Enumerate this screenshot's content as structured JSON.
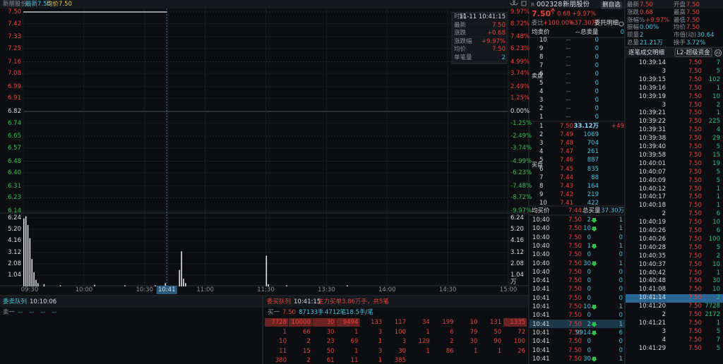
{
  "chart_header": {
    "name": "新朋股份",
    "latest": "最新7.50",
    "avg": "均价7.50"
  },
  "price_chart": {
    "type": "line",
    "color": "#e6e6e6",
    "ylim": [
      6.14,
      7.5
    ],
    "yticks": [
      {
        "value": 7.5,
        "label": "7.50"
      },
      7.42,
      7.33,
      7.25,
      7.16,
      7.08,
      6.99,
      6.91,
      6.82,
      6.74,
      6.65,
      6.57,
      6.48,
      {
        "value": 6.4,
        "label": "6.40"
      },
      6.31,
      6.23,
      6.14
    ],
    "pct_labels": [
      "9.97%",
      "8.72%",
      "7.48%",
      "6.23%",
      "4.99%",
      "3.74%",
      "2.49%",
      "1.25%",
      "0.00%",
      "-1.25%",
      "-2.49%",
      "-3.74%",
      "-4.99%",
      "-6.23%",
      "-7.48%",
      "-8.72%",
      "-9.97%"
    ],
    "x": [
      "09:30",
      "10:41"
    ],
    "values": [
      7.5,
      7.5
    ]
  },
  "info_box": {
    "rows": [
      [
        "时间",
        "11-11 10:41:15"
      ],
      [
        "最新",
        "7.50"
      ],
      [
        "涨跌",
        "+0.68"
      ],
      [
        "涨跌幅",
        "+9.97%"
      ],
      [
        "均价",
        "7.50"
      ],
      [
        "单笔量",
        "2"
      ]
    ]
  },
  "volume_chart": {
    "type": "bar",
    "color": "#e0e0e0",
    "ylim": [
      0,
      6.5
    ],
    "yticks": [
      6.24,
      {
        "value": 5.2,
        "label": "5.20"
      },
      4.16,
      3.12,
      2.08,
      1.04
    ],
    "unit": "万",
    "x": [
      "09:30",
      "09:31",
      "09:32",
      "09:33",
      "09:34",
      "09:35",
      "09:36",
      "09:37",
      "09:40",
      "09:48",
      "10:05",
      "10:20",
      "10:35",
      "10:40",
      "10:47",
      "10:48",
      "10:49",
      "10:50",
      "11:30",
      "13:01",
      "13:10",
      "13:40"
    ],
    "values": [
      6.2,
      6.4,
      5.6,
      4.4,
      2.5,
      1.3,
      0.6,
      0.3,
      0.2,
      0.1,
      0.15,
      0.1,
      0.1,
      0.3,
      1.5,
      3.2,
      0.7,
      0.3,
      2.8,
      0.2,
      0.1,
      0.1
    ]
  },
  "time_axis": {
    "ticks": [
      "09:30",
      "10:00",
      "10:30",
      "11:00",
      "11:30",
      "13:30",
      "14:00",
      "14:30",
      "15:00"
    ],
    "current": "10:41"
  },
  "sell_queue": {
    "title": "委卖队列",
    "time": "10:10:06",
    "row": [
      "卖一",
      "--",
      "--",
      "--",
      "--"
    ]
  },
  "buy_queue": {
    "title": "委买队列",
    "time": "10:41:15",
    "summary": "主力买单3.86万手，共5笔",
    "row": [
      "买一",
      "7.50",
      "87133手",
      "4712笔",
      "18.5手/笔"
    ],
    "grid": [
      [
        "7728",
        "10000",
        "30",
        "9494",
        "133",
        "117",
        "34",
        "199",
        "10",
        "131",
        "1335"
      ],
      [
        "1",
        "66",
        "30",
        "1",
        "3",
        "100",
        "1",
        "6",
        "79",
        "50",
        "72"
      ],
      [
        "10",
        "2",
        "23",
        "69",
        "1",
        "3",
        "129",
        "2",
        "30",
        "90",
        "100"
      ],
      [
        "11",
        "15",
        "50",
        "1",
        "3",
        "30",
        "1",
        "86",
        "1",
        "1",
        "26"
      ],
      [
        "380",
        "2",
        "61",
        "11",
        "1",
        "385"
      ]
    ]
  },
  "quote": {
    "flag": "R",
    "code": "002328",
    "name": "新朋股份",
    "button": "删自选",
    "price": "7.50",
    "change": "0.68",
    "pct": "+9.97%",
    "ratio_label": "委比",
    "ratio": "+100.00%",
    "diff": "+37.30万",
    "detail": "委托明细",
    "avg_sell_label": "均卖价",
    "avg_sell": "--",
    "total_sell_label": "总卖量",
    "total_sell": "0",
    "sell_side": "卖盘",
    "buy_side": "买盘",
    "sells": [
      [
        "10",
        "--",
        "0"
      ],
      [
        "9",
        "--",
        "0"
      ],
      [
        "8",
        "--",
        "0"
      ],
      [
        "7",
        "--",
        "0"
      ],
      [
        "6",
        "--",
        "0"
      ],
      [
        "5",
        "--",
        "0"
      ],
      [
        "4",
        "--",
        "0"
      ],
      [
        "3",
        "--",
        "0"
      ],
      [
        "2",
        "--",
        "0"
      ],
      [
        "1",
        "--",
        "0"
      ]
    ],
    "buys": [
      [
        "1",
        "7.50",
        "33.12万",
        "+49"
      ],
      [
        "2",
        "7.49",
        "1069"
      ],
      [
        "3",
        "7.48",
        "704"
      ],
      [
        "4",
        "7.47",
        "261"
      ],
      [
        "5",
        "7.46",
        "887"
      ],
      [
        "6",
        "7.45",
        "835"
      ],
      [
        "7",
        "7.44",
        "88"
      ],
      [
        "8",
        "7.43",
        "164"
      ],
      [
        "9",
        "7.42",
        "219"
      ],
      [
        "10",
        "7.41",
        "422"
      ]
    ],
    "avg_buy_label": "均买价",
    "avg_buy": "7.44",
    "total_buy_label": "总买量",
    "total_buy": "37.30万",
    "trades": [
      [
        "10:40",
        "7.50",
        "2",
        "1"
      ],
      [
        "10:40",
        "7.50",
        "10",
        "1"
      ],
      [
        "10:40",
        "7.50",
        "0",
        "0"
      ],
      [
        "10:40",
        "7.50",
        "1",
        "1"
      ],
      [
        "10:40",
        "7.50",
        "0",
        "0"
      ],
      [
        "10:40",
        "7.50",
        "30",
        "1"
      ],
      [
        "10:40",
        "7.50",
        "0",
        "0"
      ],
      [
        "10:41",
        "7.50",
        "0",
        "0"
      ],
      [
        "10:41",
        "7.50",
        "0",
        "0"
      ],
      [
        "10:41",
        "7.50",
        "0",
        "0"
      ],
      [
        "10:41",
        "7.50",
        "10",
        "1"
      ],
      [
        "10:41",
        "7.50",
        "0",
        "0"
      ],
      [
        "10:41",
        "7.50",
        "2",
        "1"
      ],
      [
        "10:41",
        "7.50",
        "9914",
        "6"
      ],
      [
        "10:41",
        "7.50",
        "0",
        "0"
      ],
      [
        "10:41",
        "7.50",
        "0",
        "0"
      ],
      [
        "10:41",
        "7.50",
        "30",
        "1"
      ]
    ]
  },
  "stats": [
    [
      "最新",
      "7.50"
    ],
    [
      "开盘",
      "7.50"
    ],
    [
      "涨跌",
      "0.68"
    ],
    [
      "最高",
      "7.50"
    ],
    [
      "涨幅%",
      "+9.97%"
    ],
    [
      "最低",
      "7.50"
    ],
    [
      "振幅",
      "0.00%"
    ],
    [
      "均价",
      "7.50"
    ],
    [
      "现量",
      "2"
    ],
    [
      "市值(动)",
      "30.64"
    ],
    [
      "总量",
      "21.21万"
    ],
    [
      "换手",
      "3.72%"
    ]
  ],
  "ticks_panel": {
    "tabs": [
      "逐笔成交明细",
      "L2-超级资金"
    ],
    "rows": [
      [
        "10:39:14",
        "7.50",
        "7"
      ],
      [
        "3",
        "7.50",
        "5"
      ],
      [
        "10:39:15",
        "7.50",
        "102"
      ],
      [
        "10:39:16",
        "7.50",
        "1"
      ],
      [
        "10:39:19",
        "7.50",
        "10"
      ],
      [
        "3",
        "7.50",
        "2"
      ],
      [
        "10:39:21",
        "7.50",
        "1"
      ],
      [
        "10:39:22",
        "7.50",
        "225"
      ],
      [
        "10:39:31",
        "7.50",
        "4"
      ],
      [
        "10:39:38",
        "7.50",
        "29"
      ],
      [
        "10:39:40",
        "7.50",
        "5"
      ],
      [
        "10:39:58",
        "7.50",
        "15"
      ],
      [
        "10:40:01",
        "7.50",
        "19"
      ],
      [
        "10:40:07",
        "7.50",
        "5"
      ],
      [
        "10:40:09",
        "7.50",
        "5"
      ],
      [
        "10:40:12",
        "7.50",
        "1"
      ],
      [
        "10:40:17",
        "7.50",
        "1"
      ],
      [
        "10:40:18",
        "7.50",
        "1"
      ],
      [
        "2",
        "7.50",
        "6"
      ],
      [
        "10:40:19",
        "7.50",
        "10"
      ],
      [
        "10:40:26",
        "7.50",
        "6"
      ],
      [
        "10:40:26",
        "7.50",
        "100"
      ],
      [
        "10:40:28",
        "7.50",
        "5"
      ],
      [
        "10:40:35",
        "7.50",
        "2"
      ],
      [
        "10:40:37",
        "7.50",
        "10"
      ],
      [
        "10:40:42",
        "7.50",
        "1"
      ],
      [
        "10:40:48",
        "7.50",
        "30"
      ],
      [
        "10:41:08",
        "7.50",
        "10"
      ],
      [
        "10:41:14",
        "7.50",
        "2"
      ],
      [
        "10:41:20",
        "7.50",
        "7728"
      ],
      [
        "2",
        "7.50",
        "2172"
      ],
      [
        "10:41:21",
        "7.50",
        "1"
      ],
      [
        "3",
        "7.50",
        "5"
      ],
      [
        "4",
        "7.50",
        "7"
      ],
      [
        "10:41:29",
        "7.50",
        "5"
      ]
    ]
  }
}
